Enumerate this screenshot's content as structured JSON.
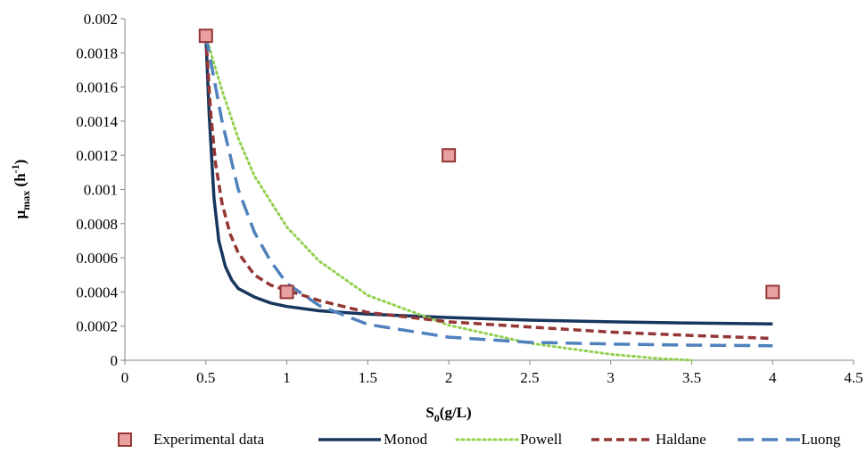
{
  "chart_data": {
    "type": "scatter",
    "xlabel": {
      "main": "S",
      "sub": "0",
      "rest": "(g/L)"
    },
    "ylabel": {
      "main": "μ",
      "sub": "max",
      "mid": " (h",
      "sup": "-1",
      "end": ")"
    },
    "xlim": [
      0,
      4.5
    ],
    "ylim": [
      0,
      0.002
    ],
    "xticks": [
      "0",
      "0.5",
      "1",
      "1.5",
      "2",
      "2.5",
      "3",
      "3.5",
      "4",
      "4.5"
    ],
    "yticks": [
      "0",
      "0.0002",
      "0.0004",
      "0.0006",
      "0.0008",
      "0.001",
      "0.0012",
      "0.0014",
      "0.0016",
      "0.0018",
      "0.002"
    ],
    "grid": false,
    "legend_position": "bottom",
    "series": [
      {
        "name": "Experimental data",
        "kind": "markers",
        "color": "#e8a0a0",
        "edge": "#943634",
        "x": [
          0.5,
          1,
          2,
          4
        ],
        "y": [
          0.0019,
          0.0004,
          0.0012,
          0.0004
        ]
      },
      {
        "name": "Monod",
        "kind": "solid",
        "color": "#17365d",
        "x": [
          0.5,
          0.52,
          0.55,
          0.58,
          0.62,
          0.66,
          0.7,
          0.8,
          0.9,
          1.0,
          1.2,
          1.5,
          2.0,
          2.5,
          3.0,
          3.5,
          4.0
        ],
        "y": [
          0.0019,
          0.00145,
          0.00095,
          0.0007,
          0.00055,
          0.00047,
          0.00042,
          0.00037,
          0.000335,
          0.000315,
          0.00029,
          0.00027,
          0.00025,
          0.000235,
          0.000225,
          0.000218,
          0.000213
        ]
      },
      {
        "name": "Powell",
        "kind": "dotted",
        "color": "#92d050",
        "x": [
          0.5,
          0.6,
          0.7,
          0.8,
          1.0,
          1.2,
          1.5,
          2.0,
          2.5,
          3.0,
          3.3,
          3.5
        ],
        "y": [
          0.0019,
          0.00158,
          0.0013,
          0.00108,
          0.00078,
          0.00058,
          0.00038,
          0.000205,
          0.0001,
          3.5e-05,
          1e-05,
          0.0
        ]
      },
      {
        "name": "Haldane",
        "kind": "dashed",
        "color": "#943634",
        "x": [
          0.5,
          0.53,
          0.56,
          0.6,
          0.65,
          0.7,
          0.8,
          0.9,
          1.0,
          1.2,
          1.5,
          2.0,
          2.5,
          3.0,
          3.5,
          4.0
        ],
        "y": [
          0.0019,
          0.00145,
          0.00115,
          0.00092,
          0.00074,
          0.00063,
          0.0005,
          0.00044,
          0.00041,
          0.00035,
          0.00028,
          0.000225,
          0.000195,
          0.000165,
          0.000145,
          0.000128
        ]
      },
      {
        "name": "Luong",
        "kind": "longdash",
        "color": "#4f81bd",
        "x": [
          0.5,
          0.55,
          0.6,
          0.65,
          0.7,
          0.8,
          0.9,
          1.0,
          1.2,
          1.5,
          2.0,
          2.5,
          3.0,
          3.5,
          4.0
        ],
        "y": [
          0.0019,
          0.00165,
          0.0014,
          0.0012,
          0.001,
          0.00075,
          0.00058,
          0.00045,
          0.00032,
          0.00021,
          0.000135,
          0.000105,
          9.5e-05,
          8.8e-05,
          8.5e-05
        ]
      }
    ]
  }
}
